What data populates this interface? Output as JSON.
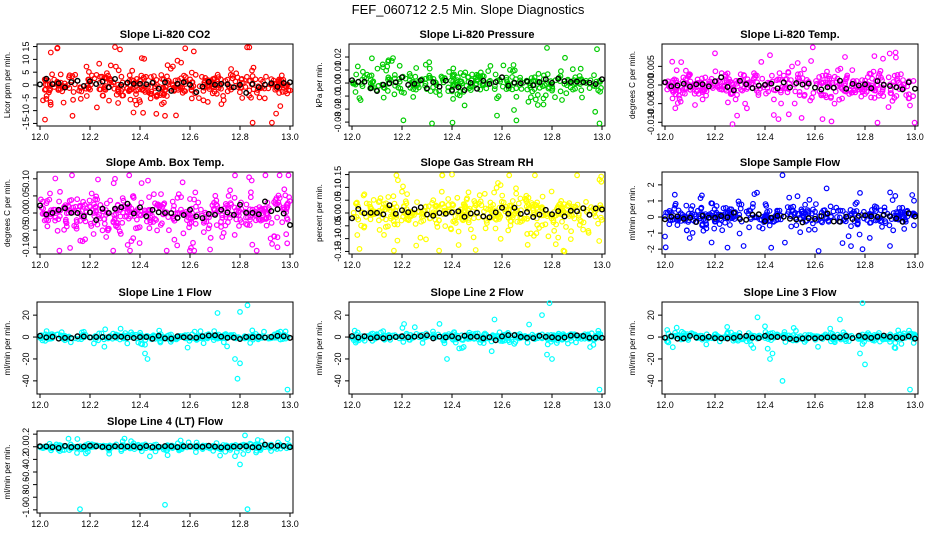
{
  "figure": {
    "title": "FEF_060712  2.5 Min. Slope Diagnostics"
  },
  "chart_data": [
    {
      "id": "p1",
      "type": "scatter",
      "title": "Slope Li-820 CO2",
      "ylabel": "Licor ppm per min.",
      "xlim": [
        12.0,
        13.0
      ],
      "xticks": [
        "12.0",
        "12.2",
        "12.4",
        "12.6",
        "12.8",
        "13.0"
      ],
      "ylim": [
        -16,
        16
      ],
      "yticks": [
        "-15",
        "-10",
        "-5",
        "0",
        "5",
        "10",
        "15"
      ],
      "color": "#ff0000",
      "n": 360,
      "spread": 4.5,
      "seed": 11,
      "outliers": [
        [
          12.07,
          14.5
        ],
        [
          12.3,
          14.8
        ],
        [
          12.32,
          13.9
        ],
        [
          12.02,
          -13.5
        ],
        [
          12.13,
          -12
        ],
        [
          12.55,
          9.5
        ],
        [
          12.5,
          -12
        ]
      ]
    },
    {
      "id": "p2",
      "type": "scatter",
      "title": "Slope Li-820 Pressure",
      "ylabel": "kPa per min.",
      "xlim": [
        12.0,
        13.0
      ],
      "xticks": [
        "12.0",
        "12.2",
        "12.4",
        "12.6",
        "12.8",
        "13.0"
      ],
      "ylim": [
        -0.033,
        0.03
      ],
      "yticks": [
        "-0.03",
        "-0.02",
        "-0.01",
        "0.00",
        "0.01",
        "0.02"
      ],
      "color": "#00cc00",
      "n": 300,
      "spread": 0.008,
      "seed": 23,
      "outliers": [
        [
          12.32,
          -0.031
        ],
        [
          12.99,
          -0.031
        ],
        [
          12.78,
          0.027
        ],
        [
          12.98,
          0.026
        ],
        [
          12.58,
          -0.025
        ]
      ]
    },
    {
      "id": "p3",
      "type": "scatter",
      "title": "Slope Li-820 Temp.",
      "ylabel": "degrees C per min.",
      "xlim": [
        12.0,
        13.0
      ],
      "xticks": [
        "12.0",
        "12.2",
        "12.4",
        "12.6",
        "12.8",
        "13.0"
      ],
      "ylim": [
        -0.011,
        0.011
      ],
      "yticks": [
        "-0.010",
        "-0.005",
        "0.000",
        "0.005"
      ],
      "color": "#ff00ff",
      "n": 380,
      "spread": 0.003,
      "seed": 37,
      "outliers": [
        [
          12.27,
          -0.0105
        ],
        [
          12.72,
          0.0075
        ],
        [
          12.2,
          0.0085
        ],
        [
          12.42,
          0.008
        ]
      ]
    },
    {
      "id": "p4",
      "type": "scatter",
      "title": "Slope Amb. Box Temp.",
      "ylabel": "degrees C per min.",
      "xlim": [
        12.0,
        13.0
      ],
      "xticks": [
        "12.0",
        "12.2",
        "12.4",
        "12.6",
        "12.8",
        "13.0"
      ],
      "ylim": [
        -0.12,
        0.12
      ],
      "yticks": [
        "-0.10",
        "-0.05",
        "0.00",
        "0.05",
        "0.10"
      ],
      "color": "#ff00ff",
      "n": 420,
      "spread": 0.045,
      "seed": 41,
      "outliers": [
        [
          12.3,
          0.1
        ],
        [
          12.78,
          0.11
        ],
        [
          12.36,
          -0.11
        ],
        [
          12.95,
          -0.1
        ]
      ]
    },
    {
      "id": "p5",
      "type": "scatter",
      "title": "Slope Gas Stream RH",
      "ylabel": "percent per min.",
      "xlim": [
        12.0,
        13.0
      ],
      "xticks": [
        "12.0",
        "12.2",
        "12.4",
        "12.6",
        "12.8",
        "13.0"
      ],
      "ylim": [
        -0.16,
        0.16
      ],
      "yticks": [
        "-0.15",
        "-0.10",
        "-0.05",
        "0.00",
        "0.05",
        "0.10",
        "0.15"
      ],
      "color": "#ffff00",
      "n": 420,
      "spread": 0.055,
      "seed": 53,
      "outliers": [
        [
          12.4,
          0.15
        ],
        [
          12.99,
          0.13
        ],
        [
          12.85,
          -0.15
        ],
        [
          12.03,
          -0.14
        ]
      ]
    },
    {
      "id": "p6",
      "type": "scatter",
      "title": "Slope Sample Flow",
      "ylabel": "ml/min per min.",
      "xlim": [
        12.0,
        13.0
      ],
      "xticks": [
        "12.0",
        "12.2",
        "12.4",
        "12.6",
        "12.8",
        "13.0"
      ],
      "ylim": [
        -2.3,
        2.8
      ],
      "yticks": [
        "-2",
        "-1",
        "0",
        "1",
        "2"
      ],
      "color": "#0000ff",
      "n": 360,
      "spread": 0.55,
      "seed": 67,
      "outliers": [
        [
          12.47,
          2.6
        ],
        [
          12.78,
          1.5
        ],
        [
          12.79,
          -2.0
        ],
        [
          12.9,
          -1.8
        ],
        [
          12.25,
          -1.9
        ]
      ]
    },
    {
      "id": "p7",
      "type": "scatter",
      "title": "Slope Line 1 Flow",
      "ylabel": "ml/min per min.",
      "xlim": [
        12.0,
        13.0
      ],
      "xticks": [
        "12.0",
        "12.2",
        "12.4",
        "12.6",
        "12.8",
        "13.0"
      ],
      "ylim": [
        -52,
        32
      ],
      "yticks": [
        "-40",
        "-20",
        "0",
        "20"
      ],
      "color": "#00ffff",
      "n": 300,
      "spread": 2.5,
      "seed": 71,
      "outliers": [
        [
          12.78,
          -20
        ],
        [
          12.8,
          -24
        ],
        [
          12.79,
          -38
        ],
        [
          12.99,
          -48
        ],
        [
          12.8,
          23
        ],
        [
          12.71,
          22
        ],
        [
          12.42,
          -15
        ],
        [
          12.43,
          -20
        ],
        [
          12.83,
          29
        ],
        [
          12.42,
          -7
        ]
      ]
    },
    {
      "id": "p8",
      "type": "scatter",
      "title": "Slope Line 2 Flow",
      "ylabel": "ml/min per min.",
      "xlim": [
        12.0,
        13.0
      ],
      "xticks": [
        "12.0",
        "12.2",
        "12.4",
        "12.6",
        "12.8",
        "13.0"
      ],
      "ylim": [
        -52,
        32
      ],
      "yticks": [
        "-40",
        "-20",
        "0",
        "20"
      ],
      "color": "#00ffff",
      "n": 320,
      "spread": 3.0,
      "seed": 83,
      "outliers": [
        [
          12.79,
          31
        ],
        [
          12.99,
          -48
        ],
        [
          12.35,
          12
        ],
        [
          12.38,
          -20
        ],
        [
          12.8,
          -20
        ],
        [
          12.78,
          -16
        ],
        [
          12.57,
          16
        ],
        [
          12.76,
          20
        ],
        [
          12.44,
          -10
        ]
      ]
    },
    {
      "id": "p9",
      "type": "scatter",
      "title": "Slope Line 3 Flow",
      "ylabel": "ml/min per min.",
      "xlim": [
        12.0,
        13.0
      ],
      "xticks": [
        "12.0",
        "12.2",
        "12.4",
        "12.6",
        "12.8",
        "13.0"
      ],
      "ylim": [
        -52,
        32
      ],
      "yticks": [
        "-40",
        "-20",
        "0",
        "20"
      ],
      "color": "#00ffff",
      "n": 340,
      "spread": 3.0,
      "seed": 97,
      "outliers": [
        [
          12.79,
          31
        ],
        [
          12.98,
          -48
        ],
        [
          12.37,
          18
        ],
        [
          12.43,
          -15
        ],
        [
          12.47,
          -40
        ],
        [
          12.8,
          -25
        ],
        [
          12.78,
          -15
        ],
        [
          12.7,
          16
        ],
        [
          12.42,
          -20
        ]
      ]
    },
    {
      "id": "p10",
      "type": "scatter",
      "title": "Slope Line 4 (LT) Flow",
      "ylabel": "ml/min per min.",
      "xlim": [
        12.0,
        13.0
      ],
      "xticks": [
        "12.0",
        "12.2",
        "12.4",
        "12.6",
        "12.8",
        "13.0"
      ],
      "ylim": [
        -1.05,
        0.25
      ],
      "yticks": [
        "-1.0",
        "-0.8",
        "-0.6",
        "-0.4",
        "-0.2",
        "0.0",
        "0.2"
      ],
      "color": "#00ffff",
      "n": 320,
      "spread": 0.035,
      "seed": 101,
      "outliers": [
        [
          12.16,
          -0.99
        ],
        [
          12.5,
          -0.92
        ],
        [
          12.83,
          -0.99
        ],
        [
          12.82,
          0.18
        ],
        [
          12.78,
          -0.15
        ],
        [
          12.8,
          -0.28
        ],
        [
          12.99,
          0.12
        ]
      ]
    }
  ]
}
